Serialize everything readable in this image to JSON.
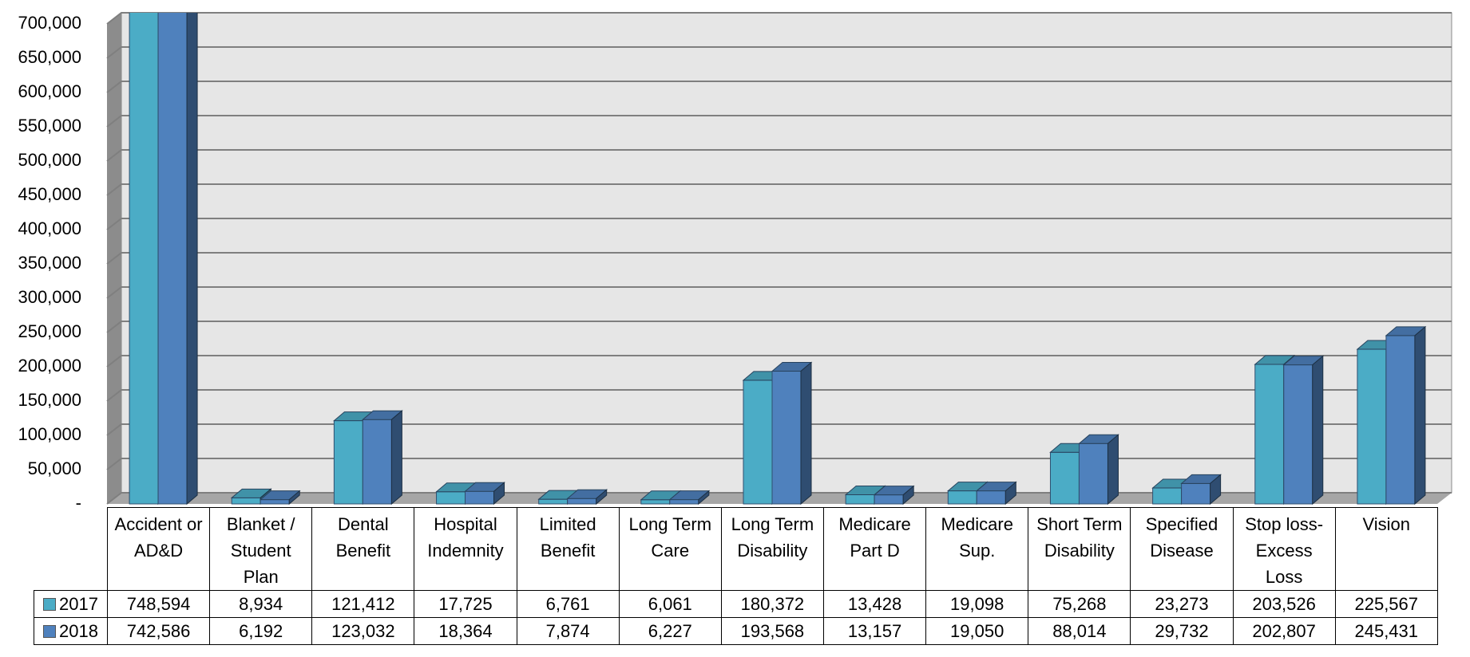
{
  "chart_data": {
    "type": "bar",
    "categories": [
      "Accident or AD&D",
      "Blanket / Student Plan",
      "Dental Benefit",
      "Hospital Indemnity",
      "Limited Benefit",
      "Long Term Care",
      "Long Term Disability",
      "Medicare Part D",
      "Medicare Sup.",
      "Short Term Disability",
      "Specified Disease",
      "Stop loss- Excess Loss",
      "Vision"
    ],
    "series": [
      {
        "name": "2017",
        "color": "#4bacc6",
        "values": [
          748594,
          8934,
          121412,
          17725,
          6761,
          6061,
          180372,
          13428,
          19098,
          75268,
          23273,
          203526,
          225567
        ],
        "value_labels": [
          "748,594",
          "8,934",
          "121,412",
          "17,725",
          "6,761",
          "6,061",
          "180,372",
          "13,428",
          "19,098",
          "75,268",
          "23,273",
          "203,526",
          "225,567"
        ]
      },
      {
        "name": "2018",
        "color": "#4f81bd",
        "values": [
          742586,
          6192,
          123032,
          18364,
          7874,
          6227,
          193568,
          13157,
          19050,
          88014,
          29732,
          202807,
          245431
        ],
        "value_labels": [
          "742,586",
          "6,192",
          "123,032",
          "18,364",
          "7,874",
          "6,227",
          "193,568",
          "13,157",
          "19,050",
          "88,014",
          "29,732",
          "202,807",
          "245,431"
        ]
      }
    ],
    "ylim": [
      0,
      700000
    ],
    "yticks": [
      {
        "value": 0,
        "label": "-"
      },
      {
        "value": 50000,
        "label": "50,000"
      },
      {
        "value": 100000,
        "label": "100,000"
      },
      {
        "value": 150000,
        "label": "150,000"
      },
      {
        "value": 200000,
        "label": "200,000"
      },
      {
        "value": 250000,
        "label": "250,000"
      },
      {
        "value": 300000,
        "label": "300,000"
      },
      {
        "value": 350000,
        "label": "350,000"
      },
      {
        "value": 400000,
        "label": "400,000"
      },
      {
        "value": 450000,
        "label": "450,000"
      },
      {
        "value": 500000,
        "label": "500,000"
      },
      {
        "value": 550000,
        "label": "550,000"
      },
      {
        "value": 600000,
        "label": "600,000"
      },
      {
        "value": 650000,
        "label": "650,000"
      },
      {
        "value": 700000,
        "label": "700,000"
      }
    ],
    "grid": true
  }
}
